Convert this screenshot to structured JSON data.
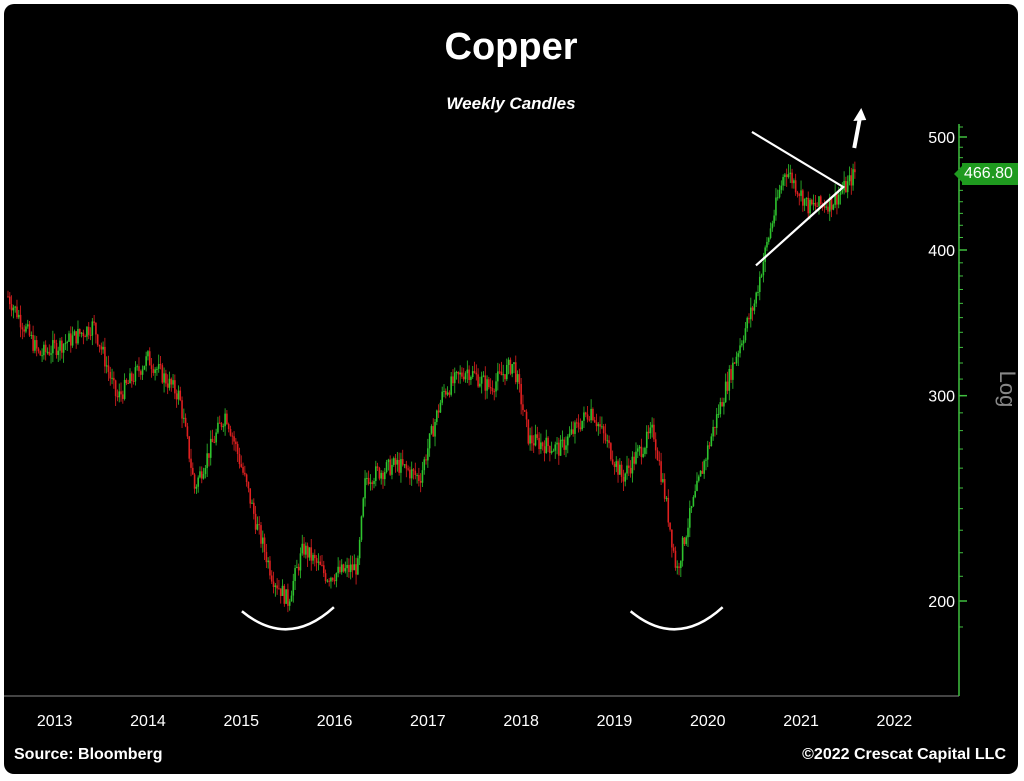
{
  "chart_data": {
    "type": "candlestick",
    "title": "Copper",
    "subtitle": "Weekly Candles",
    "source": "Source: Bloomberg",
    "copyright": "©2022 Crescat Capital LLC",
    "y_scale": "log",
    "y_scale_label": "Log",
    "ylim": [
      180,
      525
    ],
    "y_ticks": [
      200,
      300,
      400,
      500
    ],
    "x_labels": [
      "2013",
      "2014",
      "2015",
      "2016",
      "2017",
      "2018",
      "2019",
      "2020",
      "2021",
      "2022"
    ],
    "last_price": "466.80",
    "colors": {
      "up": "#2ec42e",
      "down": "#e02020",
      "axis": "#3fbf3f",
      "annotation": "#ffffff",
      "background": "#000000"
    },
    "price_path": [
      [
        "2013-01",
        365
      ],
      [
        "2013-05",
        325
      ],
      [
        "2013-09",
        335
      ],
      [
        "2013-12",
        345
      ],
      [
        "2014-03",
        298
      ],
      [
        "2014-07",
        323
      ],
      [
        "2014-11",
        300
      ],
      [
        "2015-01",
        250
      ],
      [
        "2015-05",
        290
      ],
      [
        "2015-09",
        232
      ],
      [
        "2015-11",
        210
      ],
      [
        "2016-01",
        200
      ],
      [
        "2016-03",
        222
      ],
      [
        "2016-06",
        210
      ],
      [
        "2016-10",
        214
      ],
      [
        "2016-11",
        255
      ],
      [
        "2017-03",
        262
      ],
      [
        "2017-06",
        255
      ],
      [
        "2017-09",
        302
      ],
      [
        "2017-12",
        316
      ],
      [
        "2018-03",
        305
      ],
      [
        "2018-06",
        320
      ],
      [
        "2018-08",
        275
      ],
      [
        "2018-12",
        270
      ],
      [
        "2019-04",
        292
      ],
      [
        "2019-08",
        255
      ],
      [
        "2019-12",
        280
      ],
      [
        "2020-03",
        212
      ],
      [
        "2020-06",
        255
      ],
      [
        "2020-09",
        300
      ],
      [
        "2021-01",
        360
      ],
      [
        "2021-05",
        470
      ],
      [
        "2021-08",
        435
      ],
      [
        "2021-11",
        440
      ],
      [
        "2022-01",
        455
      ],
      [
        "2022-02",
        466.8
      ]
    ],
    "annotations": [
      {
        "type": "rounded-bottom",
        "near": "2016-01"
      },
      {
        "type": "rounded-bottom",
        "near": "2020-03"
      },
      {
        "type": "symmetrical-triangle",
        "from": "2021-03",
        "to": "2022-03"
      },
      {
        "type": "arrow-up",
        "near": "2022-03"
      }
    ]
  }
}
